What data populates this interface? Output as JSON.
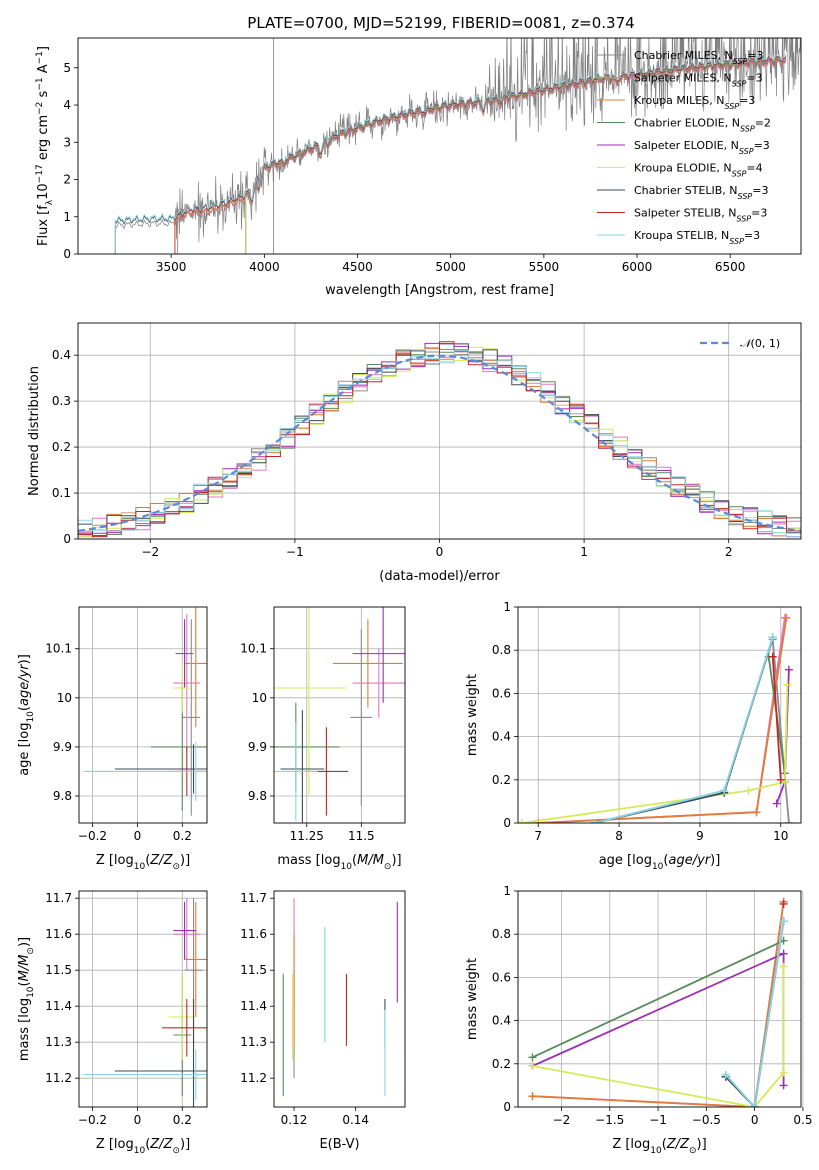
{
  "figure_title": "PLATE=0700, MJD=52199, FIBERID=0081, z=0.374",
  "colors": {
    "Chabrier MILES": "#8c8c8c",
    "Salpeter MILES": "#e377c2",
    "Kroupa MILES": "#e07b39",
    "Chabrier ELODIE": "#5a8a5a",
    "Salpeter ELODIE": "#9b30b0",
    "Kroupa ELODIE": "#d4ea5a",
    "Chabrier STELIB": "#3f4a55",
    "Salpeter STELIB": "#c0282a",
    "Kroupa STELIB": "#87d4e6",
    "gauss": "#5b8bd6",
    "grid": "#b0b0b0"
  },
  "chart_data": [
    {
      "id": "spectrum",
      "type": "line",
      "title": "PLATE=0700, MJD=52199, FIBERID=0081, z=0.374",
      "xlabel": "wavelength [Angstrom, rest frame]",
      "ylabel": "Flux [f_λ 10^-17 erg cm^-2 s^-1 A^-1]",
      "xlim": [
        3000,
        6880
      ],
      "ylim": [
        0,
        5.8
      ],
      "xticks": [
        3500,
        4000,
        4500,
        5000,
        5500,
        6000,
        6500
      ],
      "yticks": [
        0,
        1,
        2,
        3,
        4,
        5
      ],
      "grid": false,
      "legend_position": "top-right",
      "legend": [
        "Chabrier MILES, N_SSP=3",
        "Salpeter MILES, N_SSP=3",
        "Kroupa MILES, N_SSP=3",
        "Chabrier ELODIE, N_SSP=2",
        "Salpeter ELODIE, N_SSP=3",
        "Kroupa ELODIE, N_SSP=4",
        "Chabrier STELIB, N_SSP=3",
        "Salpeter STELIB, N_SSP=3",
        "Kroupa STELIB, N_SSP=3"
      ],
      "continuum_knots": [
        [
          3200,
          0.85
        ],
        [
          3400,
          0.9
        ],
        [
          3500,
          0.9
        ],
        [
          3600,
          1.15
        ],
        [
          3700,
          1.2
        ],
        [
          3800,
          1.35
        ],
        [
          3900,
          1.55
        ],
        [
          4000,
          2.3
        ],
        [
          4200,
          2.7
        ],
        [
          4400,
          3.2
        ],
        [
          4600,
          3.55
        ],
        [
          4800,
          3.8
        ],
        [
          5000,
          4.0
        ],
        [
          5200,
          4.1
        ],
        [
          5400,
          4.3
        ],
        [
          5600,
          4.5
        ],
        [
          5800,
          4.7
        ],
        [
          6000,
          4.8
        ],
        [
          6200,
          4.95
        ],
        [
          6400,
          5.05
        ],
        [
          6600,
          5.15
        ],
        [
          6750,
          5.2
        ]
      ]
    },
    {
      "id": "residuals",
      "type": "line",
      "xlabel": "(data-model)/error",
      "ylabel": "Normed distribution",
      "xlim": [
        -2.5,
        2.5
      ],
      "ylim": [
        0,
        0.47
      ],
      "xticks": [
        -2,
        -1,
        0,
        1,
        2
      ],
      "yticks": [
        0.0,
        0.1,
        0.2,
        0.3,
        0.4
      ],
      "grid": true,
      "legend_position": "top-right",
      "legend": [
        "N(0,1)"
      ],
      "bin_width": 0.1
    },
    {
      "id": "age_vs_Z",
      "type": "scatter",
      "xlabel": "Z [log10(Z/Z☉)]",
      "ylabel": "age [log10(age/yr)]",
      "xlim": [
        -0.26,
        0.31
      ],
      "ylim": [
        9.745,
        10.185
      ],
      "xticks": [
        -0.2,
        0.0,
        0.2
      ],
      "yticks": [
        9.8,
        9.9,
        10.0,
        10.1
      ],
      "grid": true,
      "points": [
        {
          "model": "Chabrier MILES",
          "x": 0.24,
          "xerr": 0.04,
          "y": 9.96,
          "yerr": 0.2
        },
        {
          "model": "Salpeter MILES",
          "x": 0.22,
          "xerr": 0.06,
          "y": 10.03,
          "yerr": 0.14
        },
        {
          "model": "Kroupa MILES",
          "x": 0.26,
          "xerr": 0.05,
          "y": 10.07,
          "yerr": 0.13
        },
        {
          "model": "Chabrier ELODIE",
          "x": 0.2,
          "xerr": 0.14,
          "y": 9.9,
          "yerr": 0.13
        },
        {
          "model": "Salpeter ELODIE",
          "x": 0.21,
          "xerr": 0.04,
          "y": 10.09,
          "yerr": 0.07
        },
        {
          "model": "Kroupa ELODIE",
          "x": 0.2,
          "xerr": 0.04,
          "y": 10.02,
          "yerr": 0.05
        },
        {
          "model": "Chabrier STELIB",
          "x": 0.25,
          "xerr": 0.35,
          "y": 9.855,
          "yerr": 0.05
        },
        {
          "model": "Salpeter STELIB",
          "x": 0.22,
          "xerr": 0.08,
          "y": 9.85,
          "yerr": 0.05
        },
        {
          "model": "Kroupa STELIB",
          "x": 0.26,
          "xerr": 0.5,
          "y": 9.85,
          "yerr": 0.06
        }
      ]
    },
    {
      "id": "age_vs_mass",
      "type": "scatter",
      "xlabel": "mass [log10(M/M☉)]",
      "ylabel": "",
      "xlim": [
        11.1,
        11.7
      ],
      "ylim": [
        9.745,
        10.185
      ],
      "xticks": [
        11.25,
        11.5
      ],
      "yticks": [
        9.8,
        9.9,
        10.0,
        10.1
      ],
      "grid": true,
      "points": [
        {
          "model": "Chabrier MILES",
          "x": 11.5,
          "xerr": 0.05,
          "y": 9.96,
          "yerr": 0.18
        },
        {
          "model": "Salpeter MILES",
          "x": 11.58,
          "xerr": 0.12,
          "y": 10.03,
          "yerr": 0.07
        },
        {
          "model": "Kroupa MILES",
          "x": 11.53,
          "xerr": 0.16,
          "y": 10.07,
          "yerr": 0.09
        },
        {
          "model": "Chabrier ELODIE",
          "x": 11.2,
          "xerr": 0.2,
          "y": 9.9,
          "yerr": 0.09
        },
        {
          "model": "Salpeter ELODIE",
          "x": 11.6,
          "xerr": 0.14,
          "y": 10.09,
          "yerr": 0.1
        },
        {
          "model": "Kroupa ELODIE",
          "x": 11.26,
          "xerr": 0.17,
          "y": 10.02,
          "yerr": 0.22
        },
        {
          "model": "Chabrier STELIB",
          "x": 11.23,
          "xerr": 0.1,
          "y": 9.855,
          "yerr": 0.12
        },
        {
          "model": "Salpeter STELIB",
          "x": 11.34,
          "xerr": 0.1,
          "y": 9.85,
          "yerr": 0.09
        },
        {
          "model": "Kroupa STELIB",
          "x": 11.2,
          "xerr": 0.1,
          "y": 9.85,
          "yerr": 0.1
        }
      ]
    },
    {
      "id": "weights_vs_age",
      "type": "line",
      "xlabel": "age [log10(age/yr)]",
      "ylabel": "mass weight",
      "xlim": [
        6.75,
        10.25
      ],
      "ylim": [
        0,
        1.0
      ],
      "xticks": [
        7,
        8,
        9,
        10
      ],
      "yticks": [
        0.0,
        0.2,
        0.4,
        0.6,
        0.8,
        1.0
      ],
      "grid": true,
      "series": [
        {
          "model": "Chabrier MILES",
          "x": [
            7.7,
            9.3,
            9.9,
            10.1
          ],
          "y": [
            0.0,
            0.15,
            0.85,
            0.0
          ]
        },
        {
          "model": "Salpeter MILES",
          "x": [
            7.0,
            9.7,
            10.05
          ],
          "y": [
            0.0,
            0.05,
            0.95
          ]
        },
        {
          "model": "Kroupa MILES",
          "x": [
            7.0,
            9.7,
            10.07
          ],
          "y": [
            0.0,
            0.05,
            0.95
          ]
        },
        {
          "model": "Chabrier ELODIE",
          "x": [
            9.85,
            10.05
          ],
          "y": [
            0.77,
            0.23
          ]
        },
        {
          "model": "Salpeter ELODIE",
          "x": [
            9.95,
            10.05,
            10.1
          ],
          "y": [
            0.09,
            0.19,
            0.71
          ]
        },
        {
          "model": "Kroupa ELODIE",
          "x": [
            6.8,
            9.6,
            10.05,
            10.08
          ],
          "y": [
            0.0,
            0.15,
            0.19,
            0.64
          ]
        },
        {
          "model": "Chabrier STELIB",
          "x": [
            7.7,
            9.3,
            9.9
          ],
          "y": [
            0.0,
            0.14,
            0.86
          ]
        },
        {
          "model": "Salpeter STELIB",
          "x": [
            9.9,
            10.0
          ],
          "y": [
            0.77,
            0.2
          ]
        },
        {
          "model": "Kroupa STELIB",
          "x": [
            7.7,
            9.3,
            9.9
          ],
          "y": [
            0.0,
            0.15,
            0.86
          ]
        }
      ]
    },
    {
      "id": "mass_vs_Z",
      "type": "scatter",
      "xlabel": "Z [log10(Z/Z☉)]",
      "ylabel": "mass [log10(M/M☉)]",
      "xlim": [
        -0.26,
        0.31
      ],
      "ylim": [
        11.12,
        11.72
      ],
      "xticks": [
        -0.2,
        0.0,
        0.2
      ],
      "yticks": [
        11.2,
        11.3,
        11.4,
        11.5,
        11.6,
        11.7
      ],
      "grid": true,
      "points": [
        {
          "model": "Chabrier MILES",
          "x": 0.25,
          "xerr": 0.04,
          "y": 11.5,
          "yerr": 0.2
        },
        {
          "model": "Salpeter MILES",
          "x": 0.22,
          "xerr": 0.06,
          "y": 11.6,
          "yerr": 0.1
        },
        {
          "model": "Kroupa MILES",
          "x": 0.26,
          "xerr": 0.05,
          "y": 11.53,
          "yerr": 0.16
        },
        {
          "model": "Chabrier ELODIE",
          "x": 0.2,
          "xerr": 0.04,
          "y": 11.32,
          "yerr": 0.17
        },
        {
          "model": "Salpeter ELODIE",
          "x": 0.21,
          "xerr": 0.05,
          "y": 11.61,
          "yerr": 0.08
        },
        {
          "model": "Kroupa ELODIE",
          "x": 0.2,
          "xerr": 0.06,
          "y": 11.37,
          "yerr": 0.12
        },
        {
          "model": "Chabrier STELIB",
          "x": 0.25,
          "xerr": 0.35,
          "y": 11.22,
          "yerr": 0.2
        },
        {
          "model": "Salpeter STELIB",
          "x": 0.22,
          "xerr": 0.11,
          "y": 11.34,
          "yerr": 0.08
        },
        {
          "model": "Kroupa STELIB",
          "x": 0.26,
          "xerr": 0.5,
          "y": 11.21,
          "yerr": 0.07
        }
      ]
    },
    {
      "id": "mass_vs_ebv",
      "type": "scatter",
      "xlabel": "E(B-V)",
      "ylabel": "",
      "xlim": [
        0.1135,
        0.156
      ],
      "ylim": [
        11.12,
        11.72
      ],
      "xticks": [
        0.12,
        0.14
      ],
      "yticks": [
        11.2,
        11.3,
        11.4,
        11.5,
        11.6,
        11.7
      ],
      "grid": false,
      "points": [
        {
          "model": "Chabrier MILES",
          "x": 0.12,
          "y": 11.35,
          "yerr": 0.15
        },
        {
          "model": "Salpeter MILES",
          "x": 0.12,
          "y": 11.55,
          "yerr": 0.15
        },
        {
          "model": "Kroupa MILES",
          "x": 0.12,
          "y": 11.44,
          "yerr": 0.16
        },
        {
          "model": "Chabrier ELODIE",
          "x": 0.1165,
          "y": 11.32,
          "yerr": 0.17
        },
        {
          "model": "Salpeter ELODIE",
          "x": 0.1535,
          "y": 11.55,
          "yerr": 0.14
        },
        {
          "model": "Kroupa ELODIE",
          "x": 0.1195,
          "y": 11.37,
          "yerr": 0.12
        },
        {
          "model": "Chabrier STELIB",
          "x": 0.1495,
          "y": 11.35,
          "yerr": 0.07
        },
        {
          "model": "Salpeter STELIB",
          "x": 0.137,
          "y": 11.39,
          "yerr": 0.1
        },
        {
          "model": "Kroupa STELIB",
          "x": 0.1495,
          "y": 11.27,
          "yerr": 0.12
        },
        {
          "model": "Kroupa STELIB",
          "x": 0.13,
          "y": 11.46,
          "yerr": 0.16
        }
      ]
    },
    {
      "id": "weights_vs_Z",
      "type": "line",
      "xlabel": "Z [log10(Z/Z☉)]",
      "ylabel": "mass weight",
      "xlim": [
        -2.45,
        0.48
      ],
      "ylim": [
        0,
        1.0
      ],
      "xticks": [
        -2.0,
        -1.5,
        -1.0,
        -0.5,
        0.0,
        0.5
      ],
      "yticks": [
        0.0,
        0.2,
        0.4,
        0.6,
        0.8,
        1.0
      ],
      "grid": true,
      "series": [
        {
          "model": "Chabrier MILES",
          "x": [
            -0.3,
            0.0,
            0.3
          ],
          "y": [
            0.14,
            0.0,
            0.86
          ]
        },
        {
          "model": "Salpeter MILES",
          "x": [
            -2.3,
            0.0,
            0.3
          ],
          "y": [
            0.05,
            0.0,
            0.95
          ]
        },
        {
          "model": "Kroupa MILES",
          "x": [
            -2.3,
            0.0,
            0.3
          ],
          "y": [
            0.05,
            0.0,
            0.95
          ]
        },
        {
          "model": "Chabrier ELODIE",
          "x": [
            -2.3,
            0.3
          ],
          "y": [
            0.23,
            0.77
          ]
        },
        {
          "model": "Salpeter ELODIE",
          "x": [
            -2.3,
            0.3,
            0.3
          ],
          "y": [
            0.19,
            0.71,
            0.1
          ]
        },
        {
          "model": "Kroupa ELODIE",
          "x": [
            -2.3,
            0.0,
            0.3,
            0.3
          ],
          "y": [
            0.19,
            0.0,
            0.16,
            0.65
          ]
        },
        {
          "model": "Chabrier STELIB",
          "x": [
            -0.3,
            0.0,
            0.3
          ],
          "y": [
            0.14,
            0.0,
            0.86
          ]
        },
        {
          "model": "Salpeter STELIB",
          "x": [
            0.3
          ],
          "y": [
            0.94
          ]
        },
        {
          "model": "Kroupa STELIB",
          "x": [
            -0.3,
            0.0,
            0.3
          ],
          "y": [
            0.15,
            0.0,
            0.86
          ]
        }
      ]
    }
  ]
}
